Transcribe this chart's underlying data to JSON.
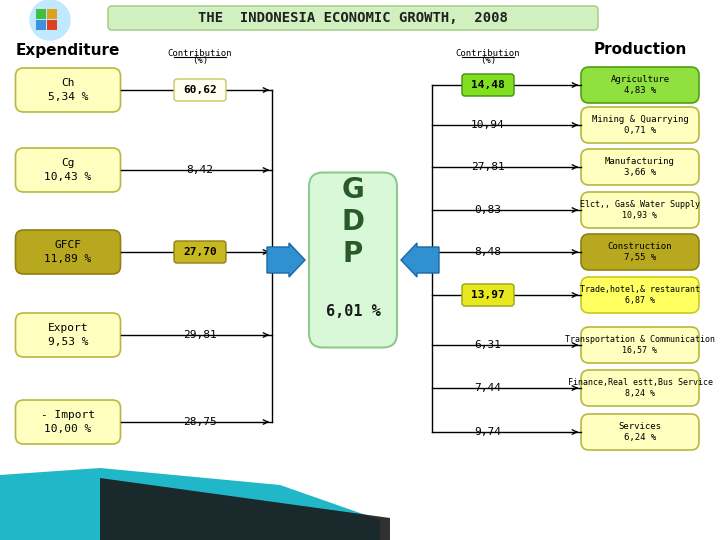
{
  "title": "THE  INDONESIA ECONOMIC GROWTH,  2008",
  "background_color": "#f0f0f0",
  "expenditure_items": [
    {
      "label": "Ch\n5,34 %",
      "color": "#ffffc0",
      "border": "#b8b840",
      "contribution": "60,62",
      "contrib_highlight": true,
      "contrib_color": "#fffff0",
      "contrib_border": "#c8c860"
    },
    {
      "label": "Cg\n10,43 %",
      "color": "#ffffc0",
      "border": "#b8b840",
      "contribution": "8,42",
      "contrib_highlight": false
    },
    {
      "label": "GFCF\n11,89 %",
      "color": "#b8a820",
      "border": "#908010",
      "contribution": "27,70",
      "contrib_highlight": true,
      "contrib_color": "#c8b820",
      "contrib_border": "#908010"
    },
    {
      "label": "Export\n9,53 %",
      "color": "#ffffc0",
      "border": "#b8b840",
      "contribution": "29,81",
      "contrib_highlight": false
    },
    {
      "label": "- Import\n10,00 %",
      "color": "#ffffc0",
      "border": "#b8b840",
      "contribution": "28,75",
      "contrib_highlight": false
    }
  ],
  "gdp_label": "G\nD\nP",
  "gdp_sublabel": "6,01 %",
  "gdp_color": "#d8f8d8",
  "gdp_border": "#90c890",
  "production_items": [
    {
      "label": "Agriculture\n4,83 %",
      "color": "#90e040",
      "border": "#50a010",
      "contribution": "14,48",
      "contrib_highlight": true,
      "contrib_color": "#80e020",
      "contrib_border": "#409010"
    },
    {
      "label": "Mining & Quarrying\n0,71 %",
      "color": "#ffffc0",
      "border": "#b8b840",
      "contribution": "10,94",
      "contrib_highlight": false
    },
    {
      "label": "Manufacturing\n3,66 %",
      "color": "#ffffc0",
      "border": "#b8b840",
      "contribution": "27,81",
      "contrib_highlight": false
    },
    {
      "label": "Elct,, Gas& Water Supply\n10,93 %",
      "color": "#ffffc0",
      "border": "#b8b840",
      "contribution": "0,83",
      "contrib_highlight": false
    },
    {
      "label": "Construction\n7,55 %",
      "color": "#b8a820",
      "border": "#908010",
      "contribution": "8,48",
      "contrib_highlight": false
    },
    {
      "label": "Trade,hotel,& restaurant\n6,87 %",
      "color": "#ffff60",
      "border": "#c8c820",
      "contribution": "13,97",
      "contrib_highlight": true,
      "contrib_color": "#e8e820",
      "contrib_border": "#a0a010"
    },
    {
      "label": "Transportation & Communication\n16,57 %",
      "color": "#ffffc0",
      "border": "#b8b840",
      "contribution": "6,31",
      "contrib_highlight": false
    },
    {
      "label": "Finance,Real estt,Bus Service\n8,24 %",
      "color": "#ffffc0",
      "border": "#b8b840",
      "contribution": "7,44",
      "contrib_highlight": false
    },
    {
      "label": "Services\n6,24 %",
      "color": "#ffffc0",
      "border": "#b8b840",
      "contribution": "9,74",
      "contrib_highlight": false
    }
  ]
}
